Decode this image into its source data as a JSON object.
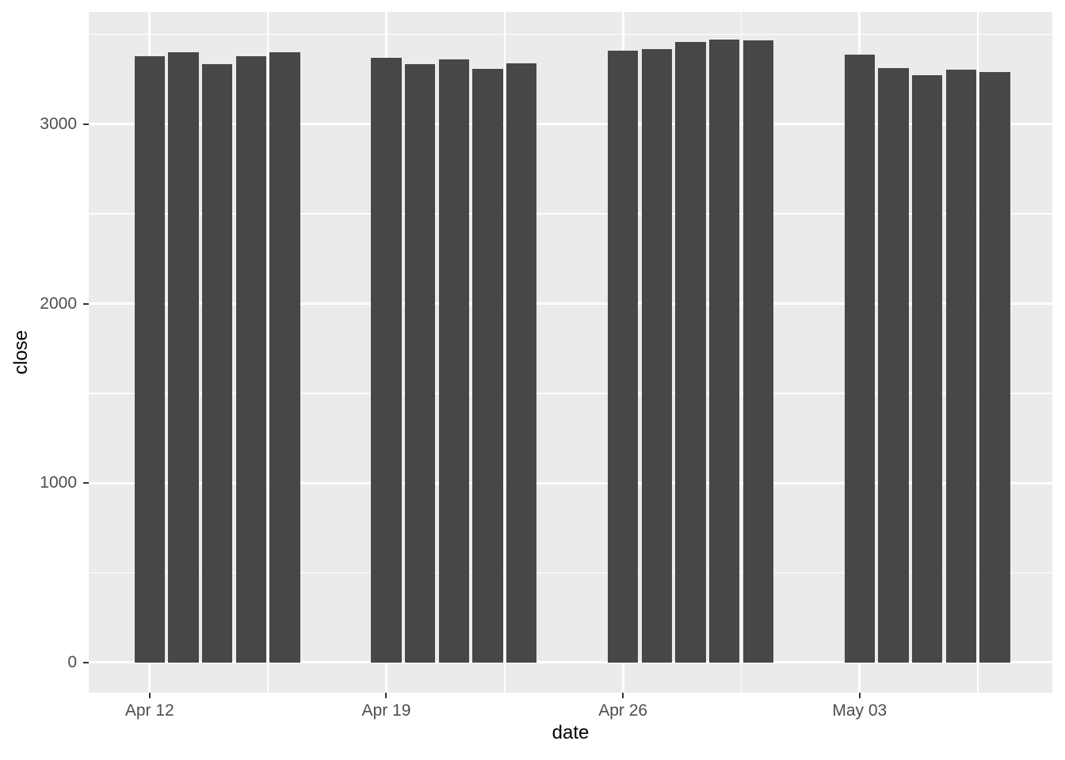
{
  "figure": {
    "background": "#FFFFFF"
  },
  "chart_data": {
    "type": "bar",
    "title": "",
    "xlabel": "date",
    "ylabel": "close",
    "legend": null,
    "grid": true,
    "bar_fill": "#474747",
    "panel_bg": "#EBEBEB",
    "grid_color": "#FFFFFF",
    "axis_text_color": "#4D4D4D",
    "axis_title_color": "#000000",
    "tick_color": "#333333",
    "bar_width_days": 0.9,
    "x_axis": {
      "range_days": [
        -1.8,
        26.7
      ],
      "ticks": [
        {
          "label": "Apr 12",
          "day": 0
        },
        {
          "label": "Apr 19",
          "day": 7
        },
        {
          "label": "Apr 26",
          "day": 14
        },
        {
          "label": "May 03",
          "day": 21
        }
      ],
      "minor_days": [
        3.5,
        10.5,
        17.5,
        24.5
      ]
    },
    "y_axis": {
      "range": [
        -168,
        3626
      ],
      "ticks": [
        0,
        1000,
        2000,
        3000
      ],
      "minor": [
        500,
        1500,
        2500,
        3500
      ]
    },
    "points": [
      {
        "date": "Apr 12",
        "day": 0,
        "close": 3379
      },
      {
        "date": "Apr 13",
        "day": 1,
        "close": 3400
      },
      {
        "date": "Apr 14",
        "day": 2,
        "close": 3333
      },
      {
        "date": "Apr 15",
        "day": 3,
        "close": 3379
      },
      {
        "date": "Apr 16",
        "day": 4,
        "close": 3399
      },
      {
        "date": "Apr 19",
        "day": 7,
        "close": 3372
      },
      {
        "date": "Apr 20",
        "day": 8,
        "close": 3335
      },
      {
        "date": "Apr 21",
        "day": 9,
        "close": 3362
      },
      {
        "date": "Apr 22",
        "day": 10,
        "close": 3309
      },
      {
        "date": "Apr 23",
        "day": 11,
        "close": 3341
      },
      {
        "date": "Apr 26",
        "day": 14,
        "close": 3409
      },
      {
        "date": "Apr 27",
        "day": 15,
        "close": 3417
      },
      {
        "date": "Apr 28",
        "day": 16,
        "close": 3459
      },
      {
        "date": "Apr 29",
        "day": 17,
        "close": 3471
      },
      {
        "date": "Apr 30",
        "day": 18,
        "close": 3467
      },
      {
        "date": "May 03",
        "day": 21,
        "close": 3386
      },
      {
        "date": "May 04",
        "day": 22,
        "close": 3312
      },
      {
        "date": "May 05",
        "day": 23,
        "close": 3271
      },
      {
        "date": "May 06",
        "day": 24,
        "close": 3306
      },
      {
        "date": "May 07",
        "day": 25,
        "close": 3292
      }
    ]
  }
}
